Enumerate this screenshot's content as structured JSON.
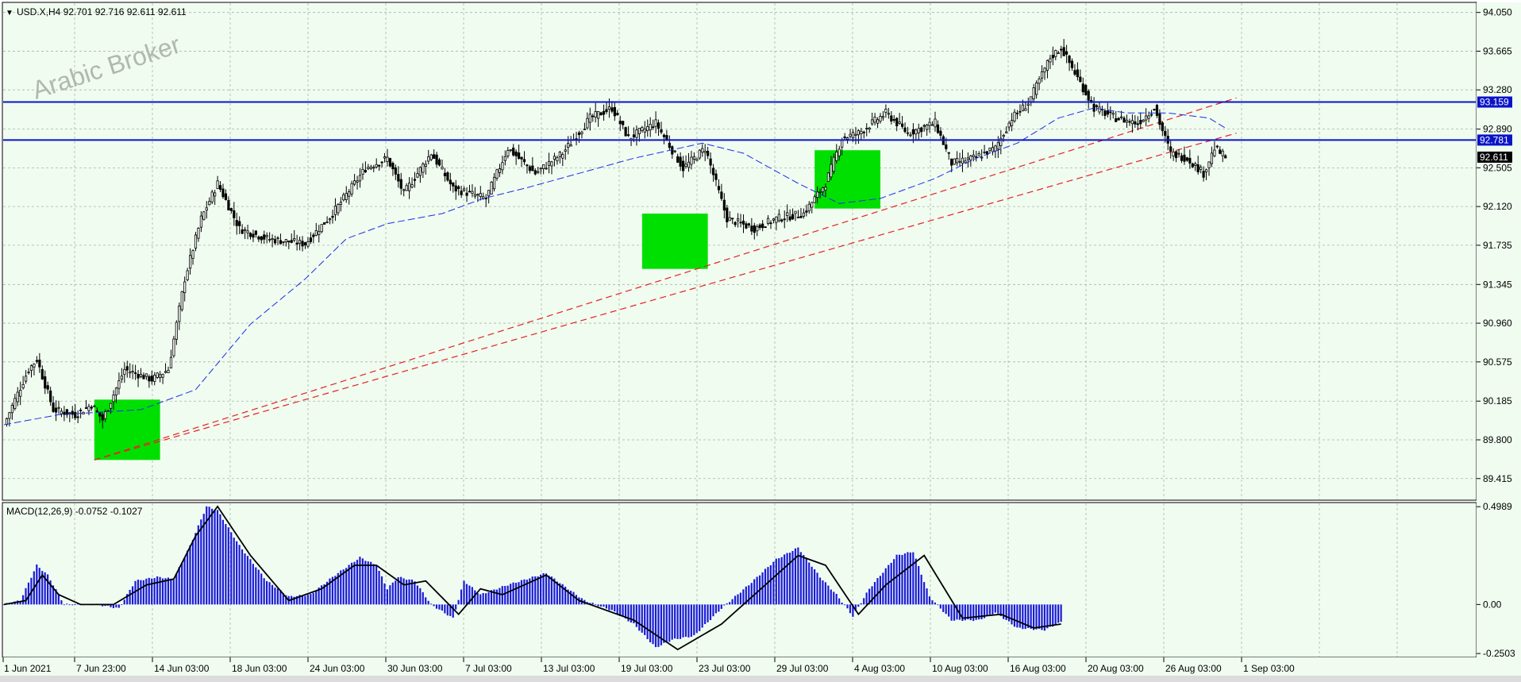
{
  "header": {
    "symbol_line": "USD.X,H4  92.701 92.716 92.611 92.611"
  },
  "watermark": "Arabic Broker",
  "colors": {
    "background": "#f0fcf0",
    "grid": "#a8b4a8",
    "candle": "#000000",
    "ma": "#1a2ee6",
    "level_line": "#0a14c8",
    "trend_line": "#e82020",
    "zone": "#00e000",
    "macd_hist": "#1a1ad8",
    "macd_signal": "#000000",
    "price_tag": "#0a14c8"
  },
  "x_axis": {
    "labels": [
      "1 Jun 2021",
      "7 Jun 23:00",
      "14 Jun 03:00",
      "18 Jun 03:00",
      "24 Jun 03:00",
      "30 Jun 03:00",
      "7 Jul 03:00",
      "13 Jul 03:00",
      "19 Jul 03:00",
      "23 Jul 03:00",
      "29 Jul 03:00",
      "4 Aug 03:00",
      "10 Aug 03:00",
      "16 Aug 03:00",
      "20 Aug 03:00",
      "26 Aug 03:00",
      "1 Sep 03:00"
    ]
  },
  "chart_data": [
    {
      "type": "candlestick",
      "symbol": "USD.X",
      "timeframe": "H4",
      "ohlc_last": {
        "open": 92.701,
        "high": 92.716,
        "low": 92.611,
        "close": 92.611
      },
      "ylim": [
        89.2,
        94.15
      ],
      "y_ticks": [
        "94.050",
        "93.665",
        "93.280",
        "92.890",
        "92.505",
        "92.120",
        "91.735",
        "91.345",
        "90.960",
        "90.575",
        "90.185",
        "89.800",
        "89.415"
      ],
      "anchors": [
        {
          "i": 0,
          "p": 89.95
        },
        {
          "i": 4,
          "p": 90.2
        },
        {
          "i": 9,
          "p": 90.5
        },
        {
          "i": 12,
          "p": 90.6
        },
        {
          "i": 18,
          "p": 90.1
        },
        {
          "i": 26,
          "p": 90.05
        },
        {
          "i": 32,
          "p": 90.15
        },
        {
          "i": 36,
          "p": 90.0
        },
        {
          "i": 44,
          "p": 90.5
        },
        {
          "i": 54,
          "p": 90.4
        },
        {
          "i": 60,
          "p": 90.5
        },
        {
          "i": 66,
          "p": 91.4
        },
        {
          "i": 72,
          "p": 92.0
        },
        {
          "i": 78,
          "p": 92.35
        },
        {
          "i": 86,
          "p": 91.9
        },
        {
          "i": 96,
          "p": 91.8
        },
        {
          "i": 110,
          "p": 91.75
        },
        {
          "i": 120,
          "p": 92.05
        },
        {
          "i": 132,
          "p": 92.5
        },
        {
          "i": 140,
          "p": 92.6
        },
        {
          "i": 146,
          "p": 92.25
        },
        {
          "i": 156,
          "p": 92.65
        },
        {
          "i": 164,
          "p": 92.3
        },
        {
          "i": 176,
          "p": 92.2
        },
        {
          "i": 184,
          "p": 92.7
        },
        {
          "i": 194,
          "p": 92.45
        },
        {
          "i": 204,
          "p": 92.65
        },
        {
          "i": 214,
          "p": 93.0
        },
        {
          "i": 222,
          "p": 93.1
        },
        {
          "i": 228,
          "p": 92.8
        },
        {
          "i": 238,
          "p": 92.95
        },
        {
          "i": 248,
          "p": 92.5
        },
        {
          "i": 256,
          "p": 92.7
        },
        {
          "i": 264,
          "p": 92.0
        },
        {
          "i": 274,
          "p": 91.9
        },
        {
          "i": 282,
          "p": 92.0
        },
        {
          "i": 292,
          "p": 92.05
        },
        {
          "i": 300,
          "p": 92.35
        },
        {
          "i": 306,
          "p": 92.8
        },
        {
          "i": 312,
          "p": 92.85
        },
        {
          "i": 322,
          "p": 93.05
        },
        {
          "i": 330,
          "p": 92.85
        },
        {
          "i": 340,
          "p": 92.95
        },
        {
          "i": 346,
          "p": 92.55
        },
        {
          "i": 354,
          "p": 92.6
        },
        {
          "i": 362,
          "p": 92.7
        },
        {
          "i": 368,
          "p": 93.0
        },
        {
          "i": 374,
          "p": 93.15
        },
        {
          "i": 382,
          "p": 93.6
        },
        {
          "i": 386,
          "p": 93.7
        },
        {
          "i": 392,
          "p": 93.4
        },
        {
          "i": 398,
          "p": 93.1
        },
        {
          "i": 406,
          "p": 93.0
        },
        {
          "i": 414,
          "p": 92.95
        },
        {
          "i": 420,
          "p": 93.1
        },
        {
          "i": 426,
          "p": 92.65
        },
        {
          "i": 432,
          "p": 92.6
        },
        {
          "i": 438,
          "p": 92.45
        },
        {
          "i": 442,
          "p": 92.7
        },
        {
          "i": 446,
          "p": 92.61
        }
      ],
      "moving_average": [
        {
          "i": 0,
          "p": 89.95
        },
        {
          "i": 20,
          "p": 90.05
        },
        {
          "i": 50,
          "p": 90.1
        },
        {
          "i": 70,
          "p": 90.3
        },
        {
          "i": 90,
          "p": 90.95
        },
        {
          "i": 110,
          "p": 91.4
        },
        {
          "i": 125,
          "p": 91.8
        },
        {
          "i": 140,
          "p": 91.95
        },
        {
          "i": 160,
          "p": 92.05
        },
        {
          "i": 175,
          "p": 92.2
        },
        {
          "i": 190,
          "p": 92.3
        },
        {
          "i": 210,
          "p": 92.45
        },
        {
          "i": 230,
          "p": 92.6
        },
        {
          "i": 255,
          "p": 92.75
        },
        {
          "i": 270,
          "p": 92.65
        },
        {
          "i": 290,
          "p": 92.35
        },
        {
          "i": 305,
          "p": 92.15
        },
        {
          "i": 320,
          "p": 92.2
        },
        {
          "i": 340,
          "p": 92.4
        },
        {
          "i": 355,
          "p": 92.6
        },
        {
          "i": 370,
          "p": 92.75
        },
        {
          "i": 385,
          "p": 93.0
        },
        {
          "i": 398,
          "p": 93.1
        },
        {
          "i": 410,
          "p": 93.05
        },
        {
          "i": 425,
          "p": 93.05
        },
        {
          "i": 440,
          "p": 93.0
        },
        {
          "i": 446,
          "p": 92.9
        }
      ],
      "horizontal_levels": [
        {
          "value": 93.159,
          "label": "93.159"
        },
        {
          "value": 92.781,
          "label": "92.781"
        }
      ],
      "current_price": {
        "value": 92.611,
        "label": "92.611"
      },
      "trend_lines": [
        {
          "from": {
            "i": 33,
            "p": 89.6
          },
          "to": {
            "i": 450,
            "p": 93.2
          }
        },
        {
          "from": {
            "i": 33,
            "p": 89.6
          },
          "to": {
            "i": 450,
            "p": 92.85
          }
        }
      ],
      "zones": [
        {
          "i0": 33,
          "i1": 57,
          "p0": 89.6,
          "p1": 90.2
        },
        {
          "i0": 233,
          "i1": 257,
          "p0": 91.5,
          "p1": 92.05
        },
        {
          "i0": 296,
          "i1": 320,
          "p0": 92.1,
          "p1": 92.68
        }
      ]
    },
    {
      "type": "macd",
      "title": "MACD(12,26,9) -0.0752 -0.1027",
      "ylim": [
        -0.27,
        0.52
      ],
      "y_ticks": [
        "0.4989",
        "0.00",
        "-0.2503"
      ],
      "histogram_anchors": [
        {
          "i": 0,
          "v": 0.0
        },
        {
          "i": 6,
          "v": 0.02
        },
        {
          "i": 12,
          "v": 0.2
        },
        {
          "i": 16,
          "v": 0.15
        },
        {
          "i": 22,
          "v": 0.0
        },
        {
          "i": 34,
          "v": 0.0
        },
        {
          "i": 42,
          "v": -0.02
        },
        {
          "i": 48,
          "v": 0.12
        },
        {
          "i": 56,
          "v": 0.14
        },
        {
          "i": 62,
          "v": 0.13
        },
        {
          "i": 68,
          "v": 0.3
        },
        {
          "i": 74,
          "v": 0.5
        },
        {
          "i": 78,
          "v": 0.48
        },
        {
          "i": 86,
          "v": 0.3
        },
        {
          "i": 96,
          "v": 0.12
        },
        {
          "i": 104,
          "v": 0.04
        },
        {
          "i": 112,
          "v": 0.05
        },
        {
          "i": 120,
          "v": 0.14
        },
        {
          "i": 130,
          "v": 0.24
        },
        {
          "i": 136,
          "v": 0.2
        },
        {
          "i": 140,
          "v": 0.08
        },
        {
          "i": 144,
          "v": 0.14
        },
        {
          "i": 150,
          "v": 0.12
        },
        {
          "i": 156,
          "v": 0.0
        },
        {
          "i": 164,
          "v": -0.07
        },
        {
          "i": 168,
          "v": 0.12
        },
        {
          "i": 174,
          "v": 0.05
        },
        {
          "i": 184,
          "v": 0.1
        },
        {
          "i": 198,
          "v": 0.16
        },
        {
          "i": 204,
          "v": 0.1
        },
        {
          "i": 212,
          "v": 0.02
        },
        {
          "i": 222,
          "v": -0.03
        },
        {
          "i": 230,
          "v": -0.1
        },
        {
          "i": 238,
          "v": -0.22
        },
        {
          "i": 244,
          "v": -0.18
        },
        {
          "i": 252,
          "v": -0.16
        },
        {
          "i": 262,
          "v": -0.02
        },
        {
          "i": 272,
          "v": 0.1
        },
        {
          "i": 282,
          "v": 0.23
        },
        {
          "i": 290,
          "v": 0.29
        },
        {
          "i": 298,
          "v": 0.14
        },
        {
          "i": 304,
          "v": 0.05
        },
        {
          "i": 310,
          "v": -0.06
        },
        {
          "i": 316,
          "v": 0.08
        },
        {
          "i": 326,
          "v": 0.25
        },
        {
          "i": 332,
          "v": 0.27
        },
        {
          "i": 338,
          "v": 0.04
        },
        {
          "i": 346,
          "v": -0.08
        },
        {
          "i": 356,
          "v": -0.08
        },
        {
          "i": 362,
          "v": -0.04
        },
        {
          "i": 370,
          "v": -0.12
        },
        {
          "i": 380,
          "v": -0.13
        },
        {
          "i": 386,
          "v": -0.09
        }
      ],
      "signal_anchors": [
        {
          "i": 0,
          "v": 0.0
        },
        {
          "i": 8,
          "v": 0.02
        },
        {
          "i": 14,
          "v": 0.15
        },
        {
          "i": 20,
          "v": 0.05
        },
        {
          "i": 28,
          "v": 0.0
        },
        {
          "i": 40,
          "v": 0.0
        },
        {
          "i": 52,
          "v": 0.1
        },
        {
          "i": 62,
          "v": 0.13
        },
        {
          "i": 70,
          "v": 0.35
        },
        {
          "i": 78,
          "v": 0.5
        },
        {
          "i": 90,
          "v": 0.25
        },
        {
          "i": 104,
          "v": 0.02
        },
        {
          "i": 116,
          "v": 0.08
        },
        {
          "i": 128,
          "v": 0.2
        },
        {
          "i": 136,
          "v": 0.2
        },
        {
          "i": 146,
          "v": 0.1
        },
        {
          "i": 154,
          "v": 0.12
        },
        {
          "i": 166,
          "v": -0.05
        },
        {
          "i": 174,
          "v": 0.08
        },
        {
          "i": 182,
          "v": 0.05
        },
        {
          "i": 198,
          "v": 0.15
        },
        {
          "i": 210,
          "v": 0.02
        },
        {
          "i": 230,
          "v": -0.08
        },
        {
          "i": 246,
          "v": -0.23
        },
        {
          "i": 262,
          "v": -0.1
        },
        {
          "i": 278,
          "v": 0.1
        },
        {
          "i": 290,
          "v": 0.25
        },
        {
          "i": 300,
          "v": 0.2
        },
        {
          "i": 312,
          "v": -0.05
        },
        {
          "i": 322,
          "v": 0.1
        },
        {
          "i": 336,
          "v": 0.25
        },
        {
          "i": 350,
          "v": -0.07
        },
        {
          "i": 364,
          "v": -0.05
        },
        {
          "i": 376,
          "v": -0.12
        },
        {
          "i": 386,
          "v": -0.1
        }
      ]
    }
  ]
}
